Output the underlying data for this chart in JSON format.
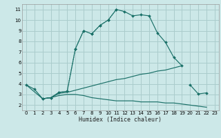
{
  "xlabel": "Humidex (Indice chaleur)",
  "bg_color": "#cce8e8",
  "grid_color": "#aacccc",
  "line_color": "#1a7068",
  "xlim": [
    -0.5,
    23.5
  ],
  "ylim": [
    1.5,
    11.5
  ],
  "xticks": [
    0,
    1,
    2,
    3,
    4,
    5,
    6,
    7,
    8,
    9,
    10,
    11,
    12,
    13,
    14,
    15,
    16,
    17,
    18,
    19,
    20,
    21,
    22,
    23
  ],
  "yticks": [
    2,
    3,
    4,
    5,
    6,
    7,
    8,
    9,
    10,
    11
  ],
  "curves": [
    {
      "x": [
        0,
        1,
        2,
        3,
        4,
        5,
        6,
        7,
        8,
        9,
        10,
        11,
        12,
        13,
        14,
        15,
        16,
        17,
        18,
        19
      ],
      "y": [
        3.9,
        3.5,
        2.6,
        2.7,
        3.2,
        3.3,
        7.3,
        9.0,
        8.7,
        9.5,
        10.0,
        11.0,
        10.8,
        10.4,
        10.5,
        10.4,
        8.8,
        7.9,
        6.5,
        5.7
      ],
      "style": "solid",
      "marker": true
    },
    {
      "x": [
        2,
        3,
        4,
        5,
        6,
        7,
        8,
        9,
        10,
        11
      ],
      "y": [
        2.6,
        2.7,
        3.2,
        3.3,
        7.3,
        9.0,
        8.7,
        9.5,
        10.0,
        11.0
      ],
      "style": "dotted",
      "marker": true
    },
    {
      "x": [
        0,
        2,
        3,
        4,
        5,
        6,
        7,
        8,
        9,
        10,
        11,
        12,
        13,
        14,
        15,
        16,
        17,
        18,
        19
      ],
      "y": [
        3.9,
        2.6,
        2.7,
        3.1,
        3.2,
        3.4,
        3.6,
        3.8,
        4.0,
        4.2,
        4.4,
        4.5,
        4.7,
        4.9,
        5.0,
        5.2,
        5.3,
        5.5,
        5.7
      ],
      "style": "solid",
      "marker": false
    },
    {
      "x": [
        2,
        3,
        4,
        5,
        6,
        7,
        8,
        9,
        10,
        11,
        12,
        13,
        14,
        15,
        16,
        17,
        18,
        19,
        20,
        21,
        22
      ],
      "y": [
        2.6,
        2.7,
        2.9,
        3.0,
        3.0,
        2.9,
        2.7,
        2.6,
        2.5,
        2.4,
        2.4,
        2.4,
        2.3,
        2.3,
        2.3,
        2.2,
        2.2,
        2.1,
        2.0,
        1.9,
        1.8
      ],
      "style": "solid",
      "marker": false
    },
    {
      "x": [
        20,
        21,
        22
      ],
      "y": [
        3.9,
        3.05,
        3.15
      ],
      "style": "solid",
      "marker": true
    }
  ]
}
